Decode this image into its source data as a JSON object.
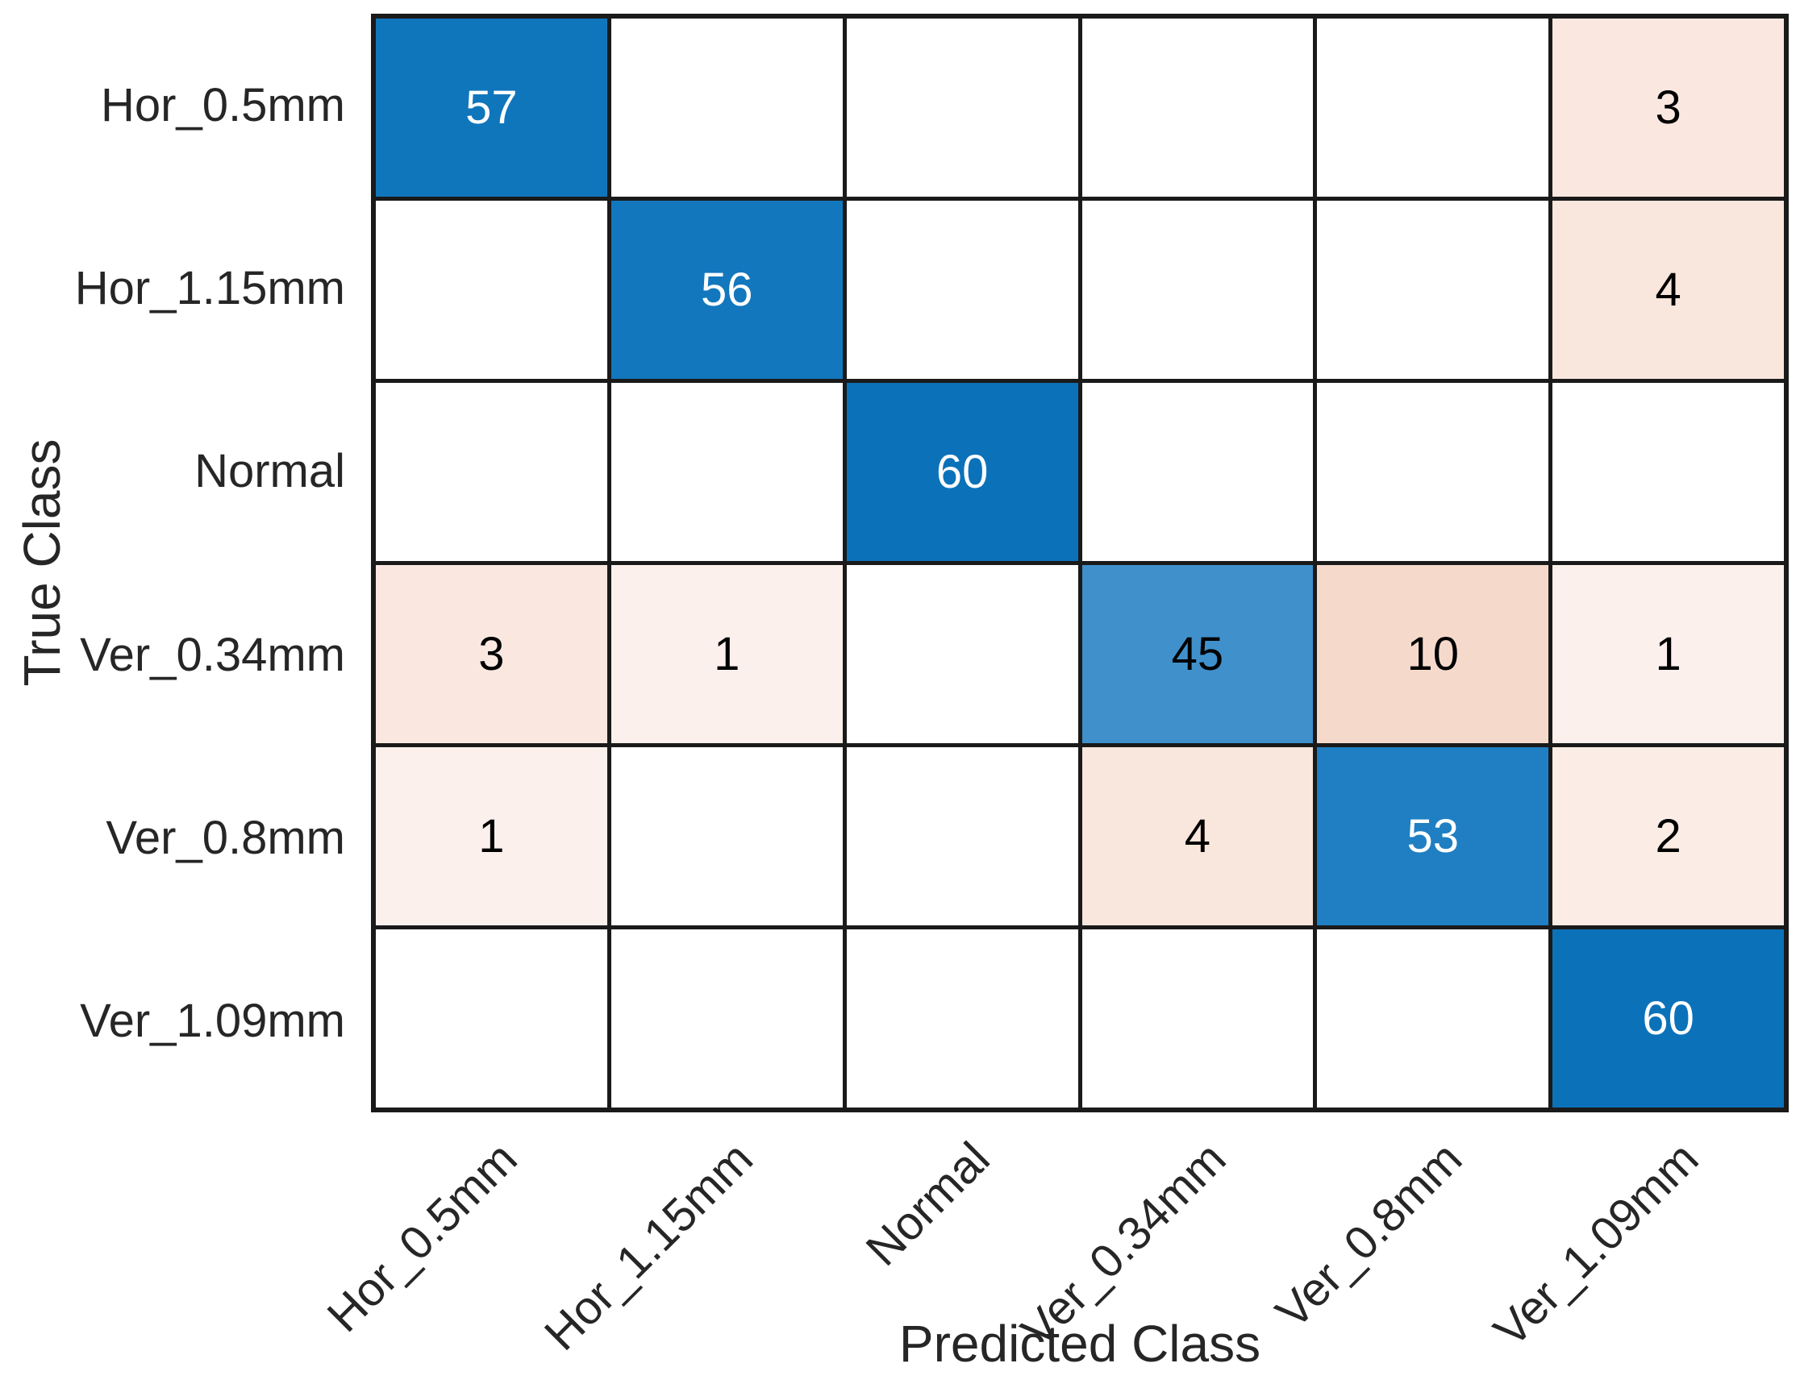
{
  "chart_data": {
    "type": "heatmap",
    "subtype": "confusion-matrix",
    "xlabel": "Predicted Class",
    "ylabel": "True Class",
    "classes": [
      "Hor_0.5mm",
      "Hor_1.15mm",
      "Normal",
      "Ver_0.34mm",
      "Ver_0.8mm",
      "Ver_1.09mm"
    ],
    "matrix": [
      [
        57,
        0,
        0,
        0,
        0,
        3
      ],
      [
        0,
        56,
        0,
        0,
        0,
        4
      ],
      [
        0,
        0,
        60,
        0,
        0,
        0
      ],
      [
        3,
        1,
        0,
        45,
        10,
        1
      ],
      [
        1,
        0,
        0,
        4,
        53,
        2
      ],
      [
        0,
        0,
        0,
        0,
        0,
        60
      ]
    ],
    "grid_line_color": "#1a1a1a",
    "label_color": "#262626",
    "cell_colors": {
      "0": {
        "bg": "#ffffff",
        "fg": "#000000"
      },
      "1": {
        "bg": "#fcf0ec",
        "fg": "#000000"
      },
      "2": {
        "bg": "#fbece5",
        "fg": "#000000"
      },
      "3": {
        "bg": "#fae8e0",
        "fg": "#000000"
      },
      "4": {
        "bg": "#f9e6dc",
        "fg": "#000000"
      },
      "10": {
        "bg": "#f5dacc",
        "fg": "#000000"
      },
      "45": {
        "bg": "#4090cb",
        "fg": "#000000"
      },
      "53": {
        "bg": "#1f7fc2",
        "fg": "#ffffff"
      },
      "56": {
        "bg": "#1377bd",
        "fg": "#ffffff"
      },
      "57": {
        "bg": "#1076bc",
        "fg": "#ffffff"
      },
      "60": {
        "bg": "#0b72b9",
        "fg": "#ffffff"
      }
    }
  }
}
